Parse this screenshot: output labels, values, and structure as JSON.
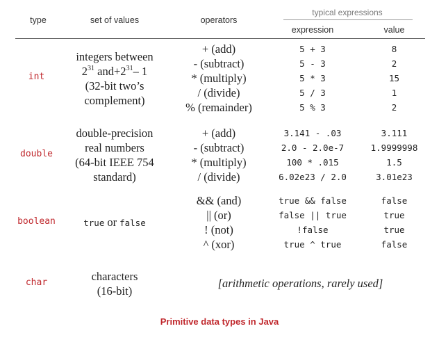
{
  "header": {
    "type": "type",
    "set_of_values": "set of values",
    "operators": "operators",
    "typical_expressions": "typical expressions",
    "expression": "expression",
    "value": "value"
  },
  "rows": [
    {
      "type": "int",
      "values": {
        "line1": "integers between",
        "line2_base1": "2",
        "line2_exp1": "31",
        "line2_mid": " and+2",
        "line2_exp2": "31",
        "line2_tail": "– 1",
        "line3": "(32-bit two’s",
        "line4": "complement)"
      },
      "operators": [
        "+ (add)",
        "- (subtract)",
        "* (multiply)",
        "/ (divide)",
        "% (remainder)"
      ],
      "expressions": [
        "5 + 3",
        "5 - 3",
        "5 * 3",
        "5 / 3",
        "5 % 3"
      ],
      "results": [
        "8",
        "2",
        "15",
        "1",
        "2"
      ]
    },
    {
      "type": "double",
      "values": [
        "double-precision",
        "real numbers",
        "(64-bit IEEE 754",
        "standard)"
      ],
      "operators": [
        "+ (add)",
        "- (subtract)",
        "* (multiply)",
        "/ (divide)"
      ],
      "expressions": [
        "3.141 - .03",
        "2.0 - 2.0e-7",
        "100 * .015",
        "6.02e23 / 2.0"
      ],
      "results": [
        "3.111",
        "1.9999998",
        "1.5",
        "3.01e23"
      ]
    },
    {
      "type": "boolean",
      "values": {
        "true": "true",
        "or": "or",
        "false": "false"
      },
      "operators": [
        "&& (and)",
        "|| (or)",
        "! (not)",
        "^ (xor)"
      ],
      "expressions": [
        "true && false",
        "false || true",
        "!false",
        "true ^ true"
      ],
      "results": [
        "false",
        "true",
        "true",
        "false"
      ]
    },
    {
      "type": "char",
      "values": [
        "characters",
        "(16-bit)"
      ],
      "note": "[arithmetic operations, rarely used]"
    }
  ],
  "caption": "Primitive data types in Java"
}
